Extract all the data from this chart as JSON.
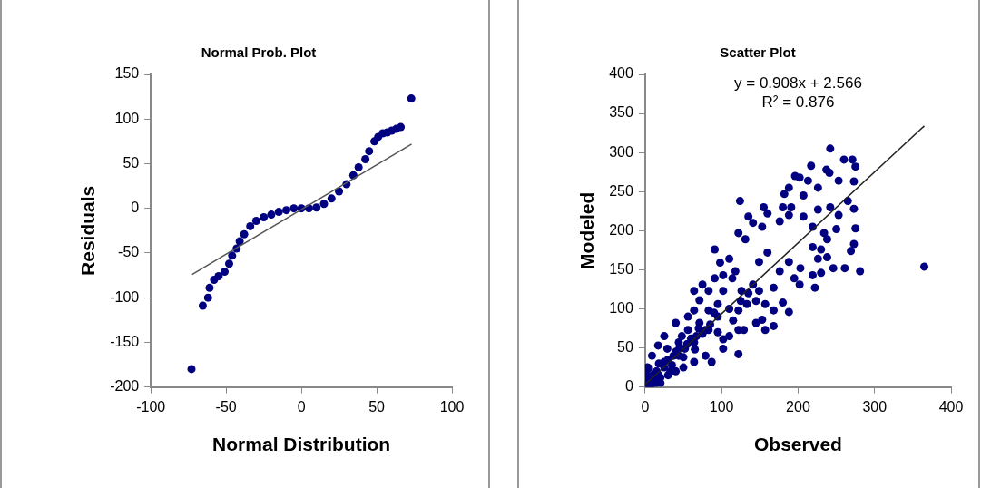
{
  "chart_data": [
    {
      "type": "scatter",
      "title": "Normal Prob. Plot",
      "xlabel": "Normal Distribution",
      "ylabel": "Residuals",
      "xlim": [
        -100,
        100
      ],
      "xticks": [
        -100,
        -50,
        0,
        50,
        100
      ],
      "ylim": [
        -200,
        150
      ],
      "yticks": [
        -200,
        -150,
        -100,
        -50,
        0,
        50,
        100,
        150
      ],
      "grid": false,
      "legend": false,
      "series": [
        {
          "marker": "circle",
          "color": "#000080",
          "x": [
            -73,
            -65.5,
            -62,
            -61,
            -58,
            -55,
            -51,
            -48,
            -46,
            -43,
            -41,
            -38,
            -34,
            -30,
            -25,
            -20,
            -15,
            -10,
            -5,
            0,
            5,
            10,
            15,
            20,
            25,
            30,
            34.5,
            38,
            42.5,
            45,
            48.5,
            51,
            54,
            57,
            60,
            63,
            66,
            73
          ],
          "values": [
            -180,
            -109,
            -100,
            -89,
            -80,
            -76,
            -71,
            -62,
            -53,
            -45,
            -37,
            -29,
            -20,
            -14,
            -10,
            -7,
            -4,
            -2,
            0,
            0,
            0,
            1,
            5,
            11,
            19,
            27,
            37,
            46,
            55,
            64,
            75,
            80,
            84,
            85,
            87,
            89,
            91,
            123
          ]
        },
        {
          "type": "line",
          "marker": "none",
          "color": "#555555",
          "x": [
            -72.6,
            73.2
          ],
          "values": [
            -74,
            72
          ]
        }
      ]
    },
    {
      "type": "scatter",
      "title": "Scatter Plot",
      "xlabel": "Observed",
      "ylabel": "Modeled",
      "xlim": [
        0,
        400
      ],
      "xticks": [
        0,
        100,
        200,
        300,
        400
      ],
      "ylim": [
        0,
        400
      ],
      "yticks": [
        0,
        50,
        100,
        150,
        200,
        250,
        300,
        350,
        400
      ],
      "grid": false,
      "legend": false,
      "annotations": [
        "y = 0.908x + 2.566",
        "R² = 0.876"
      ],
      "series": [
        {
          "marker": "circle",
          "color": "#000080",
          "x": [
            242,
            217,
            260,
            271,
            275,
            196,
            202,
            237,
            241,
            213,
            226,
            253,
            273,
            188,
            182,
            207,
            124,
            155,
            160,
            180,
            191,
            226,
            242,
            253,
            188,
            207,
            265,
            273,
            135,
            141,
            176,
            153,
            122,
            131,
            219,
            234,
            238,
            250,
            275,
            219,
            230,
            273,
            269,
            91,
            98,
            110,
            118,
            149,
            160,
            188,
            203,
            226,
            238,
            246,
            261,
            281,
            219,
            230,
            195,
            202,
            222,
            365,
            168,
            176,
            149,
            141,
            126,
            102,
            83,
            91,
            71,
            64,
            122,
            133,
            157,
            168,
            188,
            180,
            153,
            145,
            168,
            157,
            122,
            129,
            122,
            102,
            83,
            56,
            40,
            48,
            64,
            25,
            17,
            79,
            87,
            64,
            44,
            9,
            5,
            2,
            25,
            33,
            17,
            3,
            102,
            110,
            83,
            95,
            71,
            79,
            44,
            29,
            37,
            52,
            56,
            67,
            64,
            75,
            102,
            114,
            95,
            0,
            2,
            5,
            8,
            10,
            12,
            15,
            3,
            20,
            25,
            18,
            30,
            35,
            40,
            45,
            50,
            55,
            60,
            65,
            70,
            75,
            85,
            90,
            95,
            110,
            115,
            125,
            135,
            145,
            6,
            12,
            20,
            30,
            40,
            50
          ],
          "values": [
            305,
            283,
            291,
            291,
            282,
            270,
            268,
            278,
            274,
            264,
            255,
            264,
            263,
            255,
            247,
            245,
            238,
            230,
            222,
            230,
            230,
            227,
            230,
            220,
            220,
            218,
            238,
            228,
            218,
            210,
            212,
            205,
            197,
            189,
            205,
            197,
            189,
            202,
            203,
            179,
            176,
            183,
            174,
            176,
            159,
            164,
            148,
            160,
            172,
            160,
            152,
            164,
            166,
            152,
            152,
            148,
            143,
            146,
            139,
            131,
            127,
            154,
            127,
            148,
            123,
            131,
            123,
            143,
            123,
            139,
            111,
            98,
            98,
            106,
            106,
            98,
            96,
            108,
            86,
            82,
            78,
            73,
            73,
            73,
            42,
            61,
            73,
            90,
            82,
            65,
            57,
            65,
            53,
            40,
            32,
            32,
            40,
            40,
            24,
            16,
            32,
            20,
            16,
            1,
            49,
            65,
            98,
            90,
            82,
            73,
            57,
            49,
            40,
            49,
            73,
            65,
            123,
            131,
            123,
            139,
            106,
            0,
            5,
            10,
            3,
            15,
            8,
            20,
            25,
            12,
            25,
            30,
            35,
            28,
            45,
            50,
            38,
            55,
            62,
            48,
            75,
            68,
            80,
            95,
            70,
            100,
            85,
            110,
            120,
            110,
            0,
            2,
            5,
            15,
            20,
            25
          ]
        },
        {
          "type": "line",
          "marker": "none",
          "color": "#222222",
          "x": [
            0,
            365
          ],
          "values": [
            3,
            334
          ]
        }
      ]
    }
  ]
}
